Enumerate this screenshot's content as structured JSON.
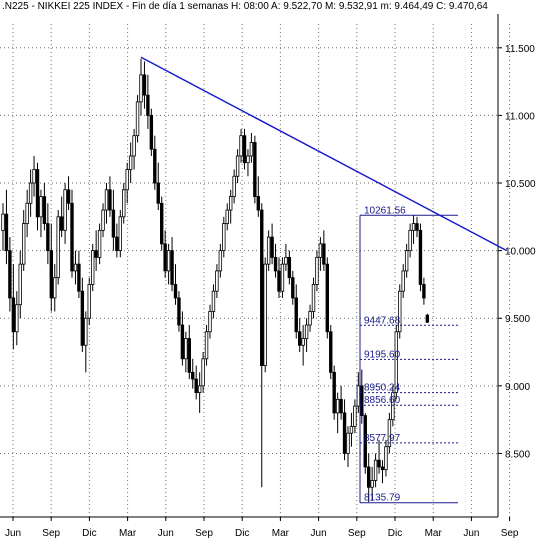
{
  "chart_data": {
    "type": "candlestick",
    "title": ".N225 - NIKKEI 225 INDEX - Fin de día 1 semanas H: 08:00  A: 9.522,70  M: 9.532,91  m: 9.464,49  C: 9.470,64",
    "xlabel": "",
    "ylabel": "",
    "ylim": [
      8030,
      11750
    ],
    "y_ticks": [
      "11.500",
      "11.000",
      "10.500",
      "10.000",
      "9.500",
      "9.000",
      "8.500"
    ],
    "y_tick_values": [
      11500,
      11000,
      10500,
      10000,
      9500,
      9000,
      8500
    ],
    "x_ticks": [
      "Jun",
      "Sep",
      "Dic",
      "Mar",
      "Jun",
      "Sep",
      "Dic",
      "Mar",
      "Jun",
      "Sep",
      "Dic",
      "Mar",
      "Jun",
      "Sep"
    ],
    "grid": true,
    "series": [
      {
        "values": [
          [
            10150,
            10350,
            10000,
            10270
          ],
          [
            10270,
            10450,
            9900,
            10000
          ],
          [
            10000,
            10100,
            9550,
            9650
          ],
          [
            9650,
            9900,
            9270,
            9400
          ],
          [
            9400,
            9700,
            9300,
            9600
          ],
          [
            9600,
            10000,
            9500,
            9900
          ],
          [
            9900,
            10300,
            9850,
            10200
          ],
          [
            10200,
            10450,
            10100,
            10350
          ],
          [
            10350,
            10600,
            10250,
            10500
          ],
          [
            10500,
            10700,
            10400,
            10600
          ],
          [
            10600,
            10650,
            10150,
            10250
          ],
          [
            10250,
            10450,
            10100,
            10400
          ],
          [
            10400,
            10500,
            10150,
            10200
          ],
          [
            10200,
            10350,
            9900,
            10000
          ],
          [
            10000,
            10200,
            9550,
            9650
          ],
          [
            9650,
            9900,
            9550,
            9800
          ],
          [
            9800,
            10300,
            9750,
            10250
          ],
          [
            10250,
            10400,
            10100,
            10150
          ],
          [
            10150,
            10500,
            10050,
            10450
          ],
          [
            10450,
            10550,
            10300,
            10350
          ],
          [
            10350,
            10450,
            9800,
            9850
          ],
          [
            9850,
            10000,
            9750,
            9900
          ],
          [
            9900,
            10000,
            9650,
            9700
          ],
          [
            9700,
            9800,
            9250,
            9300
          ],
          [
            9300,
            9550,
            9100,
            9500
          ],
          [
            9500,
            9800,
            9450,
            9750
          ],
          [
            9750,
            10050,
            9700,
            10000
          ],
          [
            10000,
            10150,
            9850,
            9950
          ],
          [
            9950,
            10200,
            9900,
            10150
          ],
          [
            10150,
            10350,
            10100,
            10300
          ],
          [
            10300,
            10500,
            10200,
            10450
          ],
          [
            10450,
            10550,
            10250,
            10300
          ],
          [
            10300,
            10450,
            10000,
            10100
          ],
          [
            10100,
            10200,
            9950,
            10000
          ],
          [
            10000,
            10300,
            9950,
            10250
          ],
          [
            10250,
            10500,
            10200,
            10450
          ],
          [
            10450,
            10650,
            10350,
            10600
          ],
          [
            10600,
            10800,
            10500,
            10700
          ],
          [
            10700,
            10900,
            10600,
            10850
          ],
          [
            10850,
            11150,
            10800,
            11100
          ],
          [
            11100,
            11420,
            11000,
            11300
          ],
          [
            11300,
            11400,
            11050,
            11150
          ],
          [
            11150,
            11300,
            10900,
            11000
          ],
          [
            11000,
            11050,
            10700,
            10750
          ],
          [
            10750,
            10850,
            10450,
            10500
          ],
          [
            10500,
            10650,
            10300,
            10350
          ],
          [
            10350,
            10400,
            10000,
            10050
          ],
          [
            10050,
            10150,
            9800,
            9850
          ],
          [
            9850,
            10050,
            9750,
            10000
          ],
          [
            10000,
            10100,
            9700,
            9750
          ],
          [
            9750,
            9900,
            9600,
            9650
          ],
          [
            9650,
            9700,
            9400,
            9450
          ],
          [
            9450,
            9550,
            9150,
            9200
          ],
          [
            9200,
            9400,
            9100,
            9350
          ],
          [
            9350,
            9450,
            9050,
            9100
          ],
          [
            9100,
            9200,
            8980,
            9050
          ],
          [
            9050,
            9150,
            8900,
            8950
          ],
          [
            8950,
            9100,
            8800,
            9000
          ],
          [
            9000,
            9250,
            8950,
            9200
          ],
          [
            9200,
            9450,
            9150,
            9400
          ],
          [
            9400,
            9600,
            9350,
            9550
          ],
          [
            9550,
            9750,
            9500,
            9700
          ],
          [
            9700,
            9900,
            9650,
            9850
          ],
          [
            9850,
            10050,
            9800,
            10000
          ],
          [
            10000,
            10250,
            9950,
            10200
          ],
          [
            10200,
            10350,
            10150,
            10300
          ],
          [
            10300,
            10450,
            10200,
            10400
          ],
          [
            10400,
            10600,
            10350,
            10550
          ],
          [
            10550,
            10750,
            10500,
            10700
          ],
          [
            10700,
            10900,
            10650,
            10850
          ],
          [
            10850,
            10900,
            10600,
            10650
          ],
          [
            10650,
            10750,
            10550,
            10700
          ],
          [
            10700,
            10870,
            10650,
            10800
          ],
          [
            10800,
            10850,
            10350,
            10400
          ],
          [
            10400,
            10550,
            10250,
            10300
          ],
          [
            10300,
            10350,
            8250,
            9150
          ],
          [
            9150,
            9950,
            9100,
            9900
          ],
          [
            9900,
            10150,
            9850,
            10100
          ],
          [
            10100,
            10200,
            9900,
            9950
          ],
          [
            9950,
            10050,
            9800,
            9850
          ],
          [
            9850,
            9950,
            9650,
            9700
          ],
          [
            9700,
            9950,
            9650,
            9900
          ],
          [
            9900,
            10050,
            9850,
            9950
          ],
          [
            9950,
            10000,
            9750,
            9800
          ],
          [
            9800,
            9850,
            9600,
            9650
          ],
          [
            9650,
            9750,
            9350,
            9400
          ],
          [
            9400,
            9500,
            9250,
            9300
          ],
          [
            9300,
            9450,
            9150,
            9350
          ],
          [
            9350,
            9500,
            9250,
            9450
          ],
          [
            9450,
            9600,
            9400,
            9550
          ],
          [
            9550,
            9800,
            9500,
            9750
          ],
          [
            9750,
            10000,
            9700,
            9950
          ],
          [
            9950,
            10100,
            9850,
            10050
          ],
          [
            10050,
            10150,
            9850,
            9900
          ],
          [
            9900,
            9950,
            9350,
            9400
          ],
          [
            9400,
            9450,
            9050,
            9100
          ],
          [
            9100,
            9150,
            8750,
            8800
          ],
          [
            8800,
            8950,
            8650,
            8900
          ],
          [
            8900,
            9000,
            8750,
            8800
          ],
          [
            8800,
            8900,
            8450,
            8500
          ],
          [
            8500,
            8700,
            8400,
            8650
          ],
          [
            8650,
            8800,
            8550,
            8700
          ],
          [
            8700,
            8900,
            8650,
            8850
          ],
          [
            8850,
            9100,
            8800,
            9000
          ],
          [
            9000,
            9120,
            8720,
            8780
          ],
          [
            8780,
            8800,
            8350,
            8400
          ],
          [
            8400,
            8500,
            8140,
            8250
          ],
          [
            8250,
            8400,
            8150,
            8300
          ],
          [
            8300,
            8500,
            8250,
            8450
          ],
          [
            8450,
            8600,
            8350,
            8400
          ],
          [
            8400,
            8450,
            8280,
            8380
          ],
          [
            8380,
            8600,
            8330,
            8550
          ],
          [
            8550,
            8800,
            8500,
            8750
          ],
          [
            8750,
            9000,
            8700,
            8950
          ],
          [
            8950,
            9450,
            8900,
            9400
          ],
          [
            9400,
            9750,
            9350,
            9700
          ],
          [
            9700,
            9900,
            9650,
            9850
          ],
          [
            9850,
            10050,
            9800,
            10000
          ],
          [
            10000,
            10200,
            9950,
            10150
          ],
          [
            10150,
            10261,
            10050,
            10200
          ],
          [
            10200,
            10250,
            10100,
            10150
          ],
          [
            10150,
            10200,
            9700,
            9750
          ],
          [
            9750,
            9800,
            9600,
            9650
          ],
          [
            9522.7,
            9532.91,
            9464.49,
            9470.64
          ]
        ]
      }
    ],
    "annotations": [
      "10261.56",
      "9447.68",
      "9195.60",
      "8950.24",
      "8856.60",
      "8577.97",
      "8135.79"
    ],
    "fib_levels": [
      10261.56,
      9447.68,
      9195.6,
      8950.24,
      8856.6,
      8577.97,
      8135.79
    ],
    "trendline": [
      [
        40,
        11430
      ],
      [
        146,
        10000
      ]
    ]
  },
  "colors": {
    "candle": "#000000",
    "trendline": "#1a1acc",
    "fib": "#1a1a8c",
    "grid": "#707070"
  }
}
